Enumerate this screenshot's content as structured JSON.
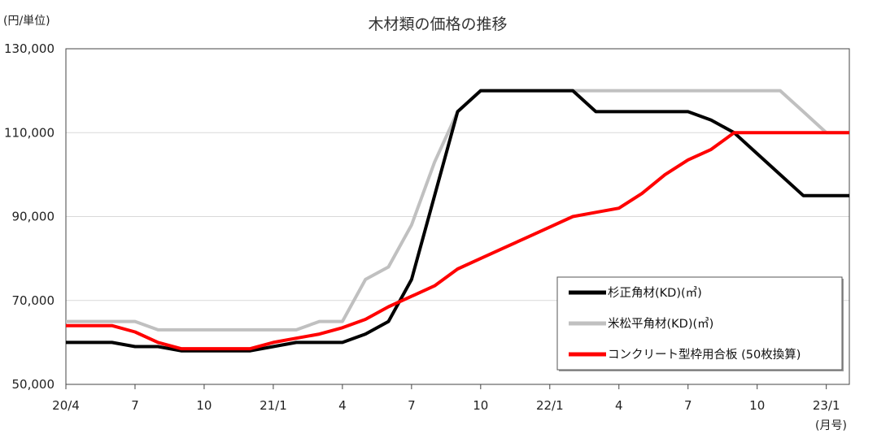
{
  "chart_data": {
    "type": "line",
    "title": "木材類の価格の推移",
    "ylabel": "(円/単位)",
    "xlabel": "(月号)",
    "ylim": [
      50000,
      130000
    ],
    "yticks": [
      50000,
      70000,
      90000,
      110000,
      130000
    ],
    "ytick_labels": [
      "50,000",
      "70,000",
      "90,000",
      "110,000",
      "130,000"
    ],
    "xlim": [
      0,
      34
    ],
    "xticks": [
      0,
      3,
      6,
      9,
      12,
      15,
      18,
      21,
      24,
      27,
      30,
      33
    ],
    "xtick_labels": [
      "20/4",
      "7",
      "10",
      "21/1",
      "4",
      "7",
      "10",
      "22/1",
      "4",
      "7",
      "10",
      "23/1"
    ],
    "grid": "horizontal",
    "legend_position": "bottom-right",
    "series": [
      {
        "name": "杉正角材(KD)(㎥)",
        "color": "#000000",
        "x": [
          0,
          2,
          3,
          4,
          5,
          8,
          9,
          10,
          11,
          12,
          13,
          14,
          15,
          16,
          17,
          18,
          19,
          20,
          21,
          22,
          23,
          24,
          25,
          26,
          27,
          28,
          29,
          30,
          31,
          32,
          33,
          34
        ],
        "values": [
          60000,
          60000,
          59000,
          59000,
          58000,
          58000,
          59000,
          60000,
          60000,
          60000,
          62000,
          65000,
          75000,
          95000,
          115000,
          120000,
          120000,
          120000,
          120000,
          120000,
          115000,
          115000,
          115000,
          115000,
          115000,
          113000,
          110000,
          105000,
          100000,
          95000,
          95000,
          95000
        ]
      },
      {
        "name": "米松平角材(KD)(㎥)",
        "color": "#c0c0c0",
        "x": [
          0,
          3,
          4,
          5,
          8,
          9,
          10,
          11,
          12,
          13,
          14,
          15,
          16,
          17,
          18,
          19,
          20,
          21,
          22,
          23,
          24,
          25,
          26,
          27,
          28,
          29,
          30,
          31,
          32,
          33,
          34
        ],
        "values": [
          65000,
          65000,
          63000,
          63000,
          63000,
          63000,
          63000,
          65000,
          65000,
          75000,
          78000,
          88000,
          103000,
          115000,
          120000,
          120000,
          120000,
          120000,
          120000,
          120000,
          120000,
          120000,
          120000,
          120000,
          120000,
          120000,
          120000,
          120000,
          115000,
          110000,
          110000
        ]
      },
      {
        "name": "コンクリート型枠用合板 (50枚換算)",
        "color": "#ff0000",
        "x": [
          0,
          2,
          3,
          4,
          5,
          8,
          9,
          10,
          11,
          12,
          13,
          14,
          15,
          16,
          17,
          18,
          19,
          20,
          21,
          22,
          23,
          24,
          25,
          26,
          27,
          28,
          29,
          30,
          31,
          32,
          33,
          34
        ],
        "values": [
          64000,
          64000,
          62500,
          60000,
          58500,
          58500,
          60000,
          61000,
          62000,
          63500,
          65500,
          68500,
          71000,
          73500,
          77500,
          80000,
          82500,
          85000,
          87500,
          90000,
          91000,
          92000,
          95500,
          100000,
          103500,
          106000,
          110000,
          110000,
          110000,
          110000,
          110000,
          110000
        ]
      }
    ]
  }
}
